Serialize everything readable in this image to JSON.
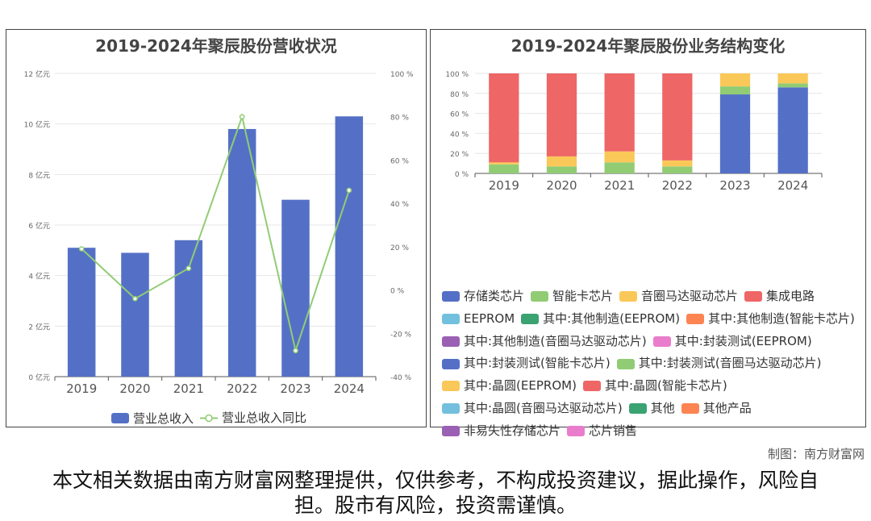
{
  "chart_data": [
    {
      "type": "bar",
      "title": "2019-2024年聚辰股份营收状况",
      "categories": [
        "2019",
        "2020",
        "2021",
        "2022",
        "2023",
        "2024"
      ],
      "series": [
        {
          "name": "营业总收入",
          "type": "bar",
          "axis": "left",
          "values": [
            5.1,
            4.9,
            5.4,
            9.8,
            7.0,
            10.3
          ],
          "color": "#5470c6"
        },
        {
          "name": "营业总收入同比",
          "type": "line",
          "axis": "right",
          "values": [
            19,
            -4,
            10,
            80,
            -28,
            46
          ],
          "color": "#91cc75"
        }
      ],
      "left_axis": {
        "ylim": [
          0,
          12
        ],
        "ticks": [
          "0 亿元",
          "2 亿元",
          "4 亿元",
          "6 亿元",
          "8 亿元",
          "10 亿元",
          "12 亿元"
        ]
      },
      "right_axis": {
        "ylim": [
          -40,
          100
        ],
        "ticks": [
          "-40 %",
          "-20 %",
          "0 %",
          "20 %",
          "40 %",
          "60 %",
          "80 %",
          "100 %"
        ]
      },
      "legend_position": "bottom",
      "grid": true
    },
    {
      "type": "bar",
      "stacked": true,
      "percent": true,
      "title": "2019-2024年聚辰股份业务结构变化",
      "categories": [
        "2019",
        "2020",
        "2021",
        "2022",
        "2023",
        "2024"
      ],
      "yticks": [
        "0 %",
        "20 %",
        "40 %",
        "60 %",
        "80 %",
        "100 %"
      ],
      "ylim": [
        0,
        100
      ],
      "series": [
        {
          "name": "存储类芯片",
          "color": "#5470c6",
          "values": [
            0,
            0,
            0,
            0,
            79,
            86
          ]
        },
        {
          "name": "智能卡芯片",
          "color": "#91cc75",
          "values": [
            9,
            7,
            11,
            7,
            8,
            4
          ]
        },
        {
          "name": "音圈马达驱动芯片",
          "color": "#fac858",
          "values": [
            2,
            10,
            11,
            6,
            13,
            10
          ]
        },
        {
          "name": "集成电路",
          "color": "#ee6666",
          "values": [
            89,
            83,
            78,
            87,
            0,
            0
          ]
        },
        {
          "name": "EEPROM",
          "color": "#73c0de",
          "values": [
            0,
            0,
            0,
            0,
            0,
            0
          ]
        },
        {
          "name": "其中:其他制造(EEPROM)",
          "color": "#3ba272",
          "values": [
            0,
            0,
            0,
            0,
            0,
            0
          ]
        },
        {
          "name": "其中:其他制造(智能卡芯片)",
          "color": "#fc8452",
          "values": [
            0,
            0,
            0,
            0,
            0,
            0
          ]
        },
        {
          "name": "其中:其他制造(音圈马达驱动芯片)",
          "color": "#9a60b4",
          "values": [
            0,
            0,
            0,
            0,
            0,
            0
          ]
        },
        {
          "name": "其中:封装测试(EEPROM)",
          "color": "#ea7ccc",
          "values": [
            0,
            0,
            0,
            0,
            0,
            0
          ]
        },
        {
          "name": "其中:封装测试(智能卡芯片)",
          "color": "#5470c6",
          "values": [
            0,
            0,
            0,
            0,
            0,
            0
          ]
        },
        {
          "name": "其中:封装测试(音圈马达驱动芯片)",
          "color": "#91cc75",
          "values": [
            0,
            0,
            0,
            0,
            0,
            0
          ]
        },
        {
          "name": "其中:晶圆(EEPROM)",
          "color": "#fac858",
          "values": [
            0,
            0,
            0,
            0,
            0,
            0
          ]
        },
        {
          "name": "其中:晶圆(智能卡芯片)",
          "color": "#ee6666",
          "values": [
            0,
            0,
            0,
            0,
            0,
            0
          ]
        },
        {
          "name": "其中:晶圆(音圈马达驱动芯片)",
          "color": "#73c0de",
          "values": [
            0,
            0,
            0,
            0,
            0,
            0
          ]
        },
        {
          "name": "其他",
          "color": "#3ba272",
          "values": [
            0,
            0,
            0,
            0,
            0,
            0
          ]
        },
        {
          "name": "其他产品",
          "color": "#fc8452",
          "values": [
            0,
            0,
            0,
            0,
            0,
            0
          ]
        },
        {
          "name": "非易失性存储芯片",
          "color": "#9a60b4",
          "values": [
            0,
            0,
            0,
            0,
            0,
            0
          ]
        },
        {
          "name": "芯片销售",
          "color": "#ea7ccc",
          "values": [
            0,
            0,
            0,
            0,
            0,
            0
          ]
        }
      ],
      "legend_position": "bottom",
      "grid": true
    }
  ],
  "watermark": "南方财富网",
  "watermark_url": "Southmoney.com",
  "credit": "制图：南方财富网",
  "disclaimer": "本文相关数据由南方财富网整理提供，仅供参考，不构成投资建议，据此操作，风险自担。股市有风险，投资需谨慎。"
}
